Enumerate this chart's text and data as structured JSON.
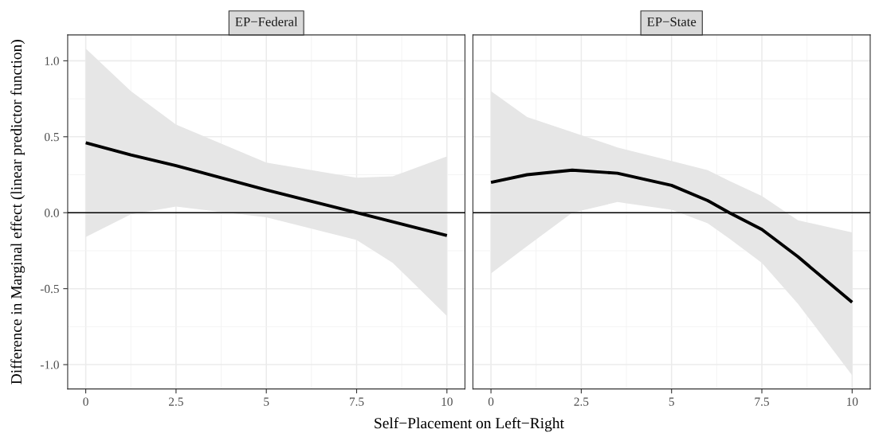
{
  "chart_data": [
    {
      "type": "line",
      "title": "EP−Federal",
      "xlabel": "Self−Placement on Left−Right",
      "ylabel": "Difference in Marginal effect (linear predictor function)",
      "x": [
        0,
        1.25,
        2.5,
        5,
        7.5,
        8.5,
        10
      ],
      "series": [
        {
          "color": "#000000",
          "values": [
            0.46,
            0.38,
            0.31,
            0.15,
            0.0,
            -0.06,
            -0.15
          ],
          "lower": [
            -0.16,
            -0.01,
            0.04,
            -0.03,
            -0.18,
            -0.33,
            -0.68
          ],
          "upper": [
            1.08,
            0.8,
            0.58,
            0.33,
            0.23,
            0.24,
            0.37
          ]
        }
      ],
      "xlim": [
        -0.5,
        10.5
      ],
      "ylim": [
        -1.16,
        1.17
      ],
      "xticks": [
        0,
        2.5,
        5,
        7.5,
        10
      ],
      "yticks": [
        {
          "value": -1,
          "label": "-1.0"
        },
        {
          "value": -0.5,
          "label": "-0.5"
        },
        {
          "value": 0,
          "label": "0.0"
        },
        {
          "value": 0.5,
          "label": "0.5"
        },
        {
          "value": 1,
          "label": "1.0"
        }
      ],
      "ref_lines": [
        {
          "axis": "y",
          "value": 0,
          "label": null,
          "color": "#000000"
        }
      ],
      "grid": true,
      "legend": false
    },
    {
      "type": "line",
      "title": "EP−State",
      "x": [
        0,
        1,
        2.25,
        3.5,
        5,
        6,
        6.6,
        7.5,
        8.5,
        10
      ],
      "series": [
        {
          "color": "#000000",
          "values": [
            0.2,
            0.25,
            0.28,
            0.26,
            0.18,
            0.08,
            0.0,
            -0.11,
            -0.29,
            -0.59
          ],
          "lower": [
            -0.4,
            -0.22,
            0.0,
            0.07,
            0.02,
            -0.07,
            -0.17,
            -0.33,
            -0.6,
            -1.07
          ],
          "upper": [
            0.8,
            0.63,
            0.53,
            0.43,
            0.34,
            0.28,
            0.21,
            0.11,
            -0.05,
            -0.13
          ]
        }
      ],
      "xlim": [
        -0.5,
        10.5
      ],
      "ylim": [
        -1.16,
        1.17
      ],
      "xticks": [
        0,
        2.5,
        5,
        7.5,
        10
      ],
      "yticks": [
        -1,
        -0.5,
        0,
        0.5,
        1
      ],
      "ref_lines": [
        {
          "axis": "y",
          "value": 0,
          "label": null,
          "color": "#000000"
        }
      ],
      "grid": true,
      "legend": false,
      "tick_labels": "x"
    }
  ]
}
